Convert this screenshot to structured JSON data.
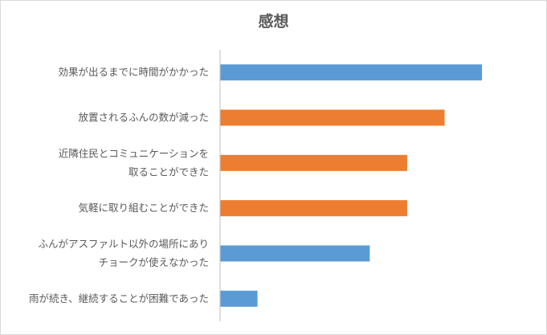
{
  "chart_data": {
    "type": "bar",
    "orientation": "horizontal",
    "title": "感想",
    "categories": [
      [
        "効果が出るまでに時間がかかった"
      ],
      [
        "放置されるふんの数が減った"
      ],
      [
        "近隣住民とコミュニケーションを",
        "取ることができた"
      ],
      [
        "気軽に取り組むことができた"
      ],
      [
        "ふんがアスファルト以外の場所にあり",
        "チョークが使えなかった"
      ],
      [
        "雨が続き、継続することが困難であった"
      ]
    ],
    "values": [
      7,
      6,
      5,
      5,
      4,
      1
    ],
    "xlim": [
      0,
      8
    ],
    "grid": false,
    "legend": "none",
    "colors": [
      "#5b9bd5",
      "#ed7d31",
      "#ed7d31",
      "#ed7d31",
      "#5b9bd5",
      "#5b9bd5"
    ]
  }
}
